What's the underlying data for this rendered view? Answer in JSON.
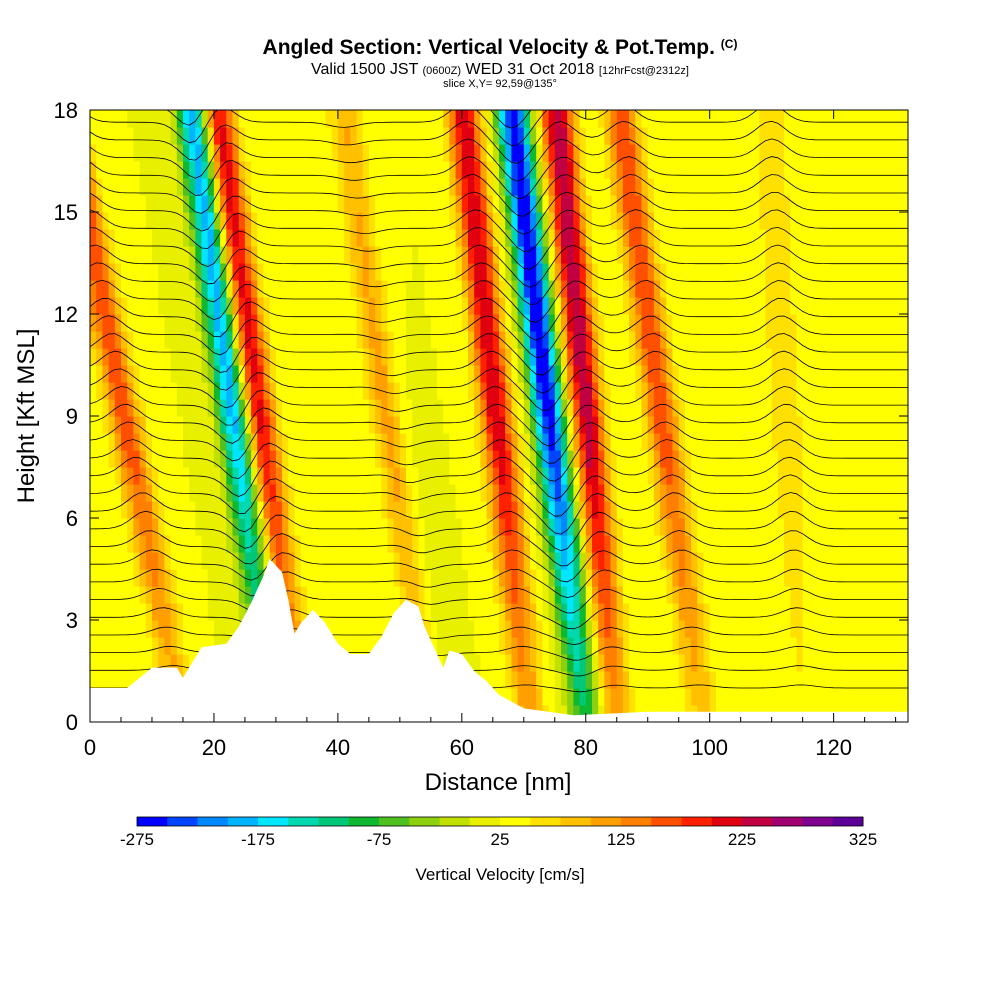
{
  "header": {
    "title": "Angled Section: Vertical Velocity & Pot.Temp.",
    "title_mark": "(C)",
    "valid_prefix": "Valid 1500 JST",
    "valid_utc": "(0600Z)",
    "valid_date": "WED 31 Oct 2018",
    "forecast": "[12hrFcst@2312z]",
    "slice": "slice X,Y= 92,59@135°"
  },
  "chart_data": {
    "type": "heatmap",
    "xlabel": "Distance [nm]",
    "ylabel": "Height [Kft MSL]",
    "xlim": [
      0,
      132
    ],
    "ylim": [
      0,
      18
    ],
    "x_ticks": [
      0,
      20,
      40,
      60,
      80,
      100,
      120
    ],
    "y_ticks": [
      0,
      3,
      6,
      9,
      12,
      15,
      18
    ],
    "grid": false,
    "colorbar": {
      "title": "Vertical Velocity [cm/s]",
      "tick_labels": [
        -275,
        -175,
        -75,
        25,
        125,
        225,
        325
      ],
      "colors": [
        "#0000ff",
        "#0044ff",
        "#0088ff",
        "#00b4ff",
        "#00e6ff",
        "#00d8b0",
        "#00c878",
        "#10b830",
        "#50c020",
        "#8cd010",
        "#c0e000",
        "#e8f000",
        "#ffff00",
        "#ffe000",
        "#ffc000",
        "#ffa000",
        "#ff8000",
        "#ff5000",
        "#ff2000",
        "#e00010",
        "#c00040",
        "#a00070",
        "#800090",
        "#5c0098"
      ]
    },
    "velocity_bands": [
      {
        "x_surface": 15,
        "tilt": 0.35,
        "sign": "up",
        "peak_cm_s": 175
      },
      {
        "x_surface": 30,
        "tilt": 0.25,
        "sign": "down",
        "peak_cm_s": -200
      },
      {
        "x_surface": 34,
        "tilt": 0.25,
        "sign": "up",
        "peak_cm_s": 225
      },
      {
        "x_surface": 57,
        "tilt": 0.3,
        "sign": "down",
        "peak_cm_s": -125
      },
      {
        "x_surface": 56,
        "tilt": 0.28,
        "sign": "up",
        "peak_cm_s": 250
      },
      {
        "x_surface": 71,
        "tilt": 0.2,
        "sign": "up",
        "peak_cm_s": 225
      },
      {
        "x_surface": 80,
        "tilt": 0.22,
        "sign": "down",
        "peak_cm_s": -275
      },
      {
        "x_surface": 85,
        "tilt": 0.18,
        "sign": "up",
        "peak_cm_s": 250
      },
      {
        "x_surface": 99,
        "tilt": 0.25,
        "sign": "up",
        "peak_cm_s": 175
      },
      {
        "x_surface": 115,
        "tilt": 0.1,
        "sign": "up",
        "peak_cm_s": 75
      }
    ],
    "terrain_kft": [
      [
        0,
        1.0
      ],
      [
        6,
        1.0
      ],
      [
        10,
        1.6
      ],
      [
        14,
        1.6
      ],
      [
        15,
        1.3
      ],
      [
        18,
        2.2
      ],
      [
        22,
        2.3
      ],
      [
        24,
        2.8
      ],
      [
        26,
        3.5
      ],
      [
        28,
        4.3
      ],
      [
        29,
        4.8
      ],
      [
        31,
        4.4
      ],
      [
        32,
        3.6
      ],
      [
        33,
        2.6
      ],
      [
        34,
        2.9
      ],
      [
        36,
        3.3
      ],
      [
        38,
        2.9
      ],
      [
        40,
        2.3
      ],
      [
        42,
        2.0
      ],
      [
        45,
        2.0
      ],
      [
        47,
        2.5
      ],
      [
        49,
        3.2
      ],
      [
        51,
        3.6
      ],
      [
        53,
        3.4
      ],
      [
        54,
        2.8
      ],
      [
        56,
        2.0
      ],
      [
        57,
        1.6
      ],
      [
        58,
        2.1
      ],
      [
        60,
        2.0
      ],
      [
        62,
        1.5
      ],
      [
        64,
        1.2
      ],
      [
        66,
        0.8
      ],
      [
        68,
        0.6
      ],
      [
        70,
        0.4
      ],
      [
        74,
        0.3
      ],
      [
        78,
        0.2
      ],
      [
        90,
        0.3
      ],
      [
        110,
        0.3
      ],
      [
        132,
        0.3
      ]
    ]
  }
}
